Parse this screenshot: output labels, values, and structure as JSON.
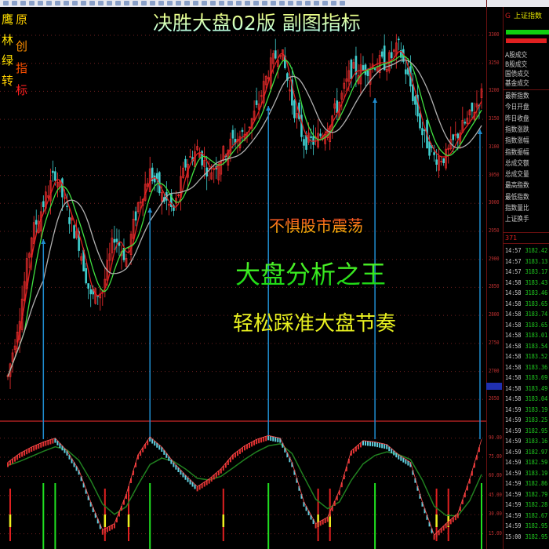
{
  "header": {
    "title": "决胜大盘02版  副图指标",
    "logo_text": "鹰林绿转 原创指标"
  },
  "overlay": {
    "line1": "不惧股市震荡",
    "line2": "大盘分析之王",
    "line3": "轻松踩准大盘节奏"
  },
  "colors": {
    "background": "#000000",
    "up_candle": "#ff3030",
    "down_candle": "#40d0d0",
    "ma_fast": "#e02020",
    "ma_mid": "#40e040",
    "ma_slow": "#b0b0b0",
    "signal_line": "#1f8dd0",
    "osc_up": "#e03030",
    "osc_down": "#60d0e0",
    "osc_signal": "#208020",
    "grid": "#702020"
  },
  "right_panel": {
    "title": "上证指数",
    "stats_group1": [
      "A股成交",
      "B股成交",
      "国债成交",
      "基金成交"
    ],
    "stats_group2": [
      "最新指数",
      "今日开盘",
      "昨日收盘",
      "指数涨跌",
      "指数涨幅",
      "指数振幅",
      "总成交额",
      "总成交量",
      "最高指数",
      "最低指数",
      "指数量比",
      "上证换手"
    ],
    "tick_count": "371",
    "ticks": [
      {
        "time": "14:57",
        "price": "3182.42"
      },
      {
        "time": "14:57",
        "price": "3183.13"
      },
      {
        "time": "14:57",
        "price": "3183.17"
      },
      {
        "time": "14:58",
        "price": "3183.43"
      },
      {
        "time": "14:58",
        "price": "3183.46"
      },
      {
        "time": "14:58",
        "price": "3183.65"
      },
      {
        "time": "14:58",
        "price": "3183.74"
      },
      {
        "time": "14:58",
        "price": "3183.65"
      },
      {
        "time": "14:58",
        "price": "3183.01"
      },
      {
        "time": "14:58",
        "price": "3183.54"
      },
      {
        "time": "14:58",
        "price": "3183.52"
      },
      {
        "time": "14:58",
        "price": "3183.36"
      },
      {
        "time": "14:58",
        "price": "3183.69"
      },
      {
        "time": "14:58",
        "price": "3183.49"
      },
      {
        "time": "14:58",
        "price": "3183.04"
      },
      {
        "time": "14:59",
        "price": "3183.19"
      },
      {
        "time": "14:59",
        "price": "3183.25"
      },
      {
        "time": "14:59",
        "price": "3182.95"
      },
      {
        "time": "14:59",
        "price": "3183.16"
      },
      {
        "time": "14:59",
        "price": "3182.97"
      },
      {
        "time": "14:59",
        "price": "3182.59"
      },
      {
        "time": "14:59",
        "price": "3183.19"
      },
      {
        "time": "14:59",
        "price": "3182.86"
      },
      {
        "time": "14:59",
        "price": "3182.79"
      },
      {
        "time": "14:59",
        "price": "3182.28"
      },
      {
        "time": "14:59",
        "price": "3182.67"
      },
      {
        "time": "14:59",
        "price": "3182.95"
      },
      {
        "time": "15:00",
        "price": "3182.95"
      }
    ]
  },
  "chart_data": [
    {
      "type": "candlestick",
      "price_axis_ticks": [
        "3300",
        "3250",
        "3200",
        "3150",
        "3100",
        "3050",
        "3000",
        "2950",
        "2900",
        "2850",
        "2800",
        "2750",
        "2700",
        "2650"
      ],
      "ylim": [
        2615,
        3325
      ],
      "grid": true,
      "close": [
        2691,
        2803,
        2943,
        2999,
        3055,
        2985,
        2929,
        2831,
        2845,
        2943,
        2901,
        2999,
        3055,
        3013,
        2985,
        3069,
        3097,
        3055,
        3083,
        3111,
        3125,
        3167,
        3237,
        3279,
        3181,
        3111,
        3111,
        3139,
        3181,
        3237,
        3237,
        3251,
        3251,
        3279,
        3209,
        3125,
        3083,
        3083,
        3125,
        3153,
        3195
      ],
      "buy_signals_at_index": [
        3,
        12,
        22,
        31,
        40
      ]
    },
    {
      "type": "line",
      "axis_ticks": [
        "90.00",
        "75.00",
        "60.00",
        "45.00",
        "30.00",
        "15.00"
      ],
      "ylim": [
        0,
        100
      ],
      "grid": true,
      "oscillator": [
        71,
        78,
        83,
        87,
        90,
        80,
        65,
        40,
        18,
        23,
        46,
        77,
        91,
        83,
        71,
        61,
        52,
        58,
        66,
        77,
        84,
        89,
        92,
        90,
        71,
        40,
        23,
        28,
        49,
        80,
        88,
        87,
        85,
        77,
        71,
        40,
        14,
        23,
        31,
        58,
        89
      ],
      "green_markers_at_index": [
        3,
        4,
        12,
        22,
        31,
        40
      ],
      "red_markers_at_index": [
        0,
        8,
        10,
        18,
        26,
        27,
        36,
        37
      ]
    }
  ]
}
